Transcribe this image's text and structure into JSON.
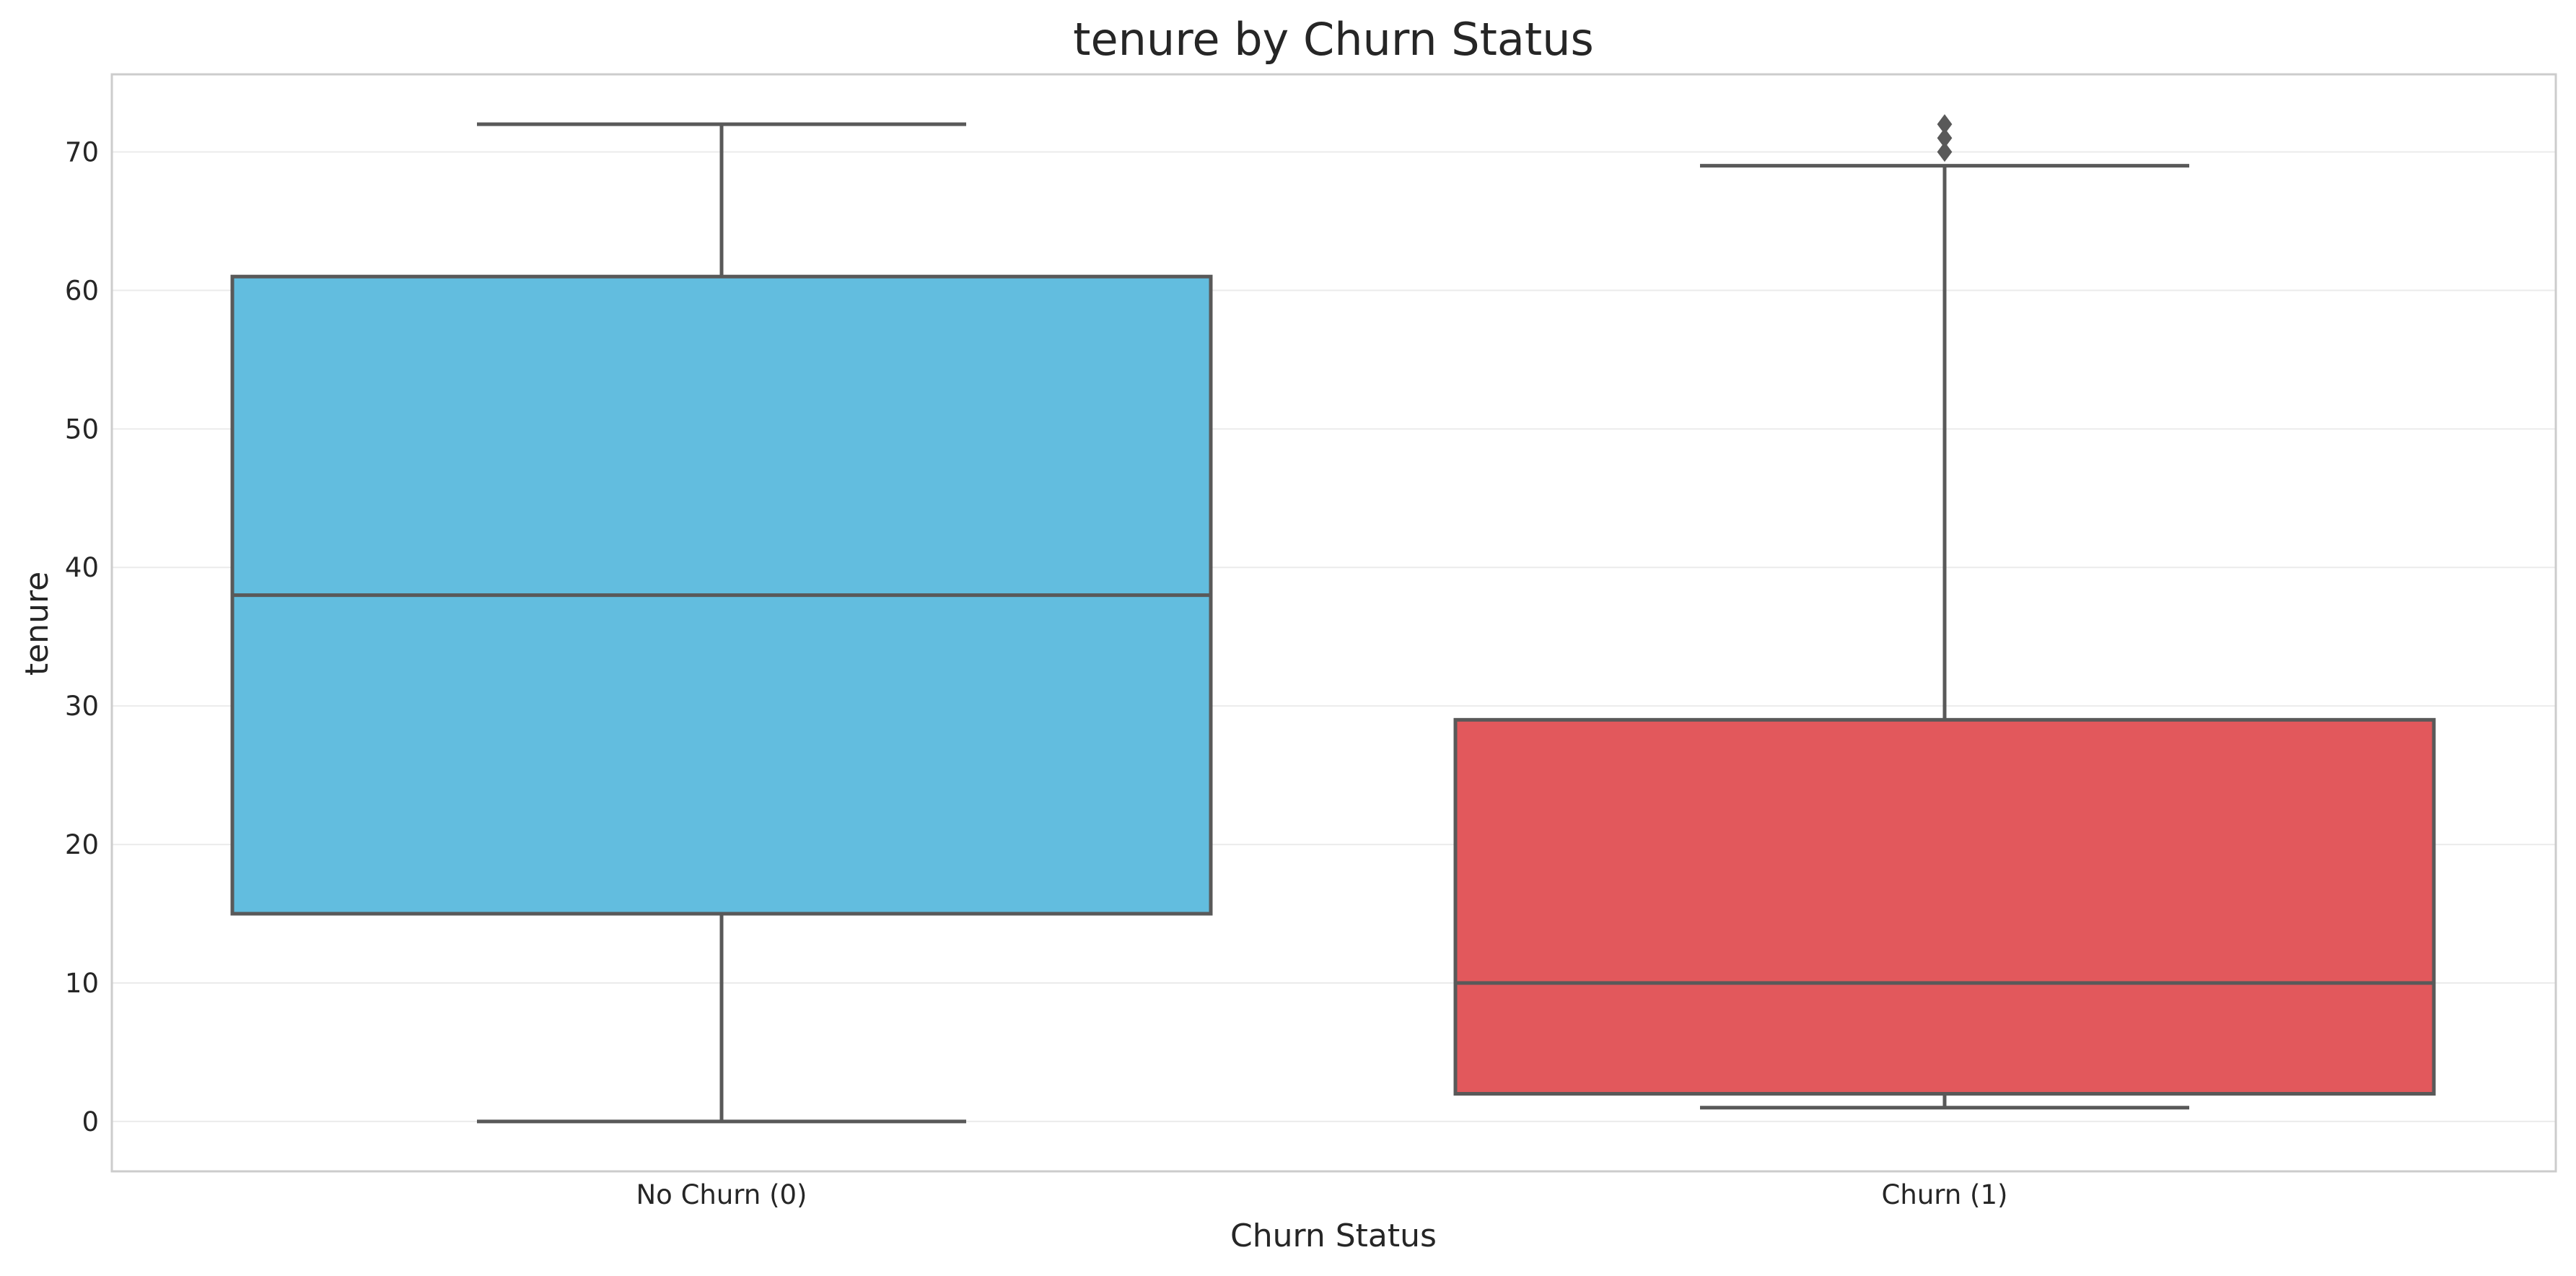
{
  "chart_data": {
    "type": "box",
    "title": "tenure by Churn Status",
    "xlabel": "Churn Status",
    "ylabel": "tenure",
    "categories": [
      "No Churn (0)",
      "Churn (1)"
    ],
    "ylim": [
      -3.6,
      75.6
    ],
    "yticks": [
      0,
      10,
      20,
      30,
      40,
      50,
      60,
      70
    ],
    "grid": true,
    "legend": "none",
    "series": [
      {
        "category": "No Churn (0)",
        "color": "#62bddf",
        "whisker_low": 0,
        "q1": 15,
        "median": 38,
        "q3": 61,
        "whisker_high": 72,
        "outliers": []
      },
      {
        "category": "Churn (1)",
        "color": "#e2585c",
        "whisker_low": 1,
        "q1": 2,
        "median": 10,
        "q3": 29,
        "whisker_high": 69,
        "outliers": [
          70,
          71,
          72
        ]
      }
    ],
    "colors": {
      "box_edge": "#595959",
      "grid": "#ebebeb",
      "frame": "#cccccc",
      "text": "#262626"
    }
  }
}
